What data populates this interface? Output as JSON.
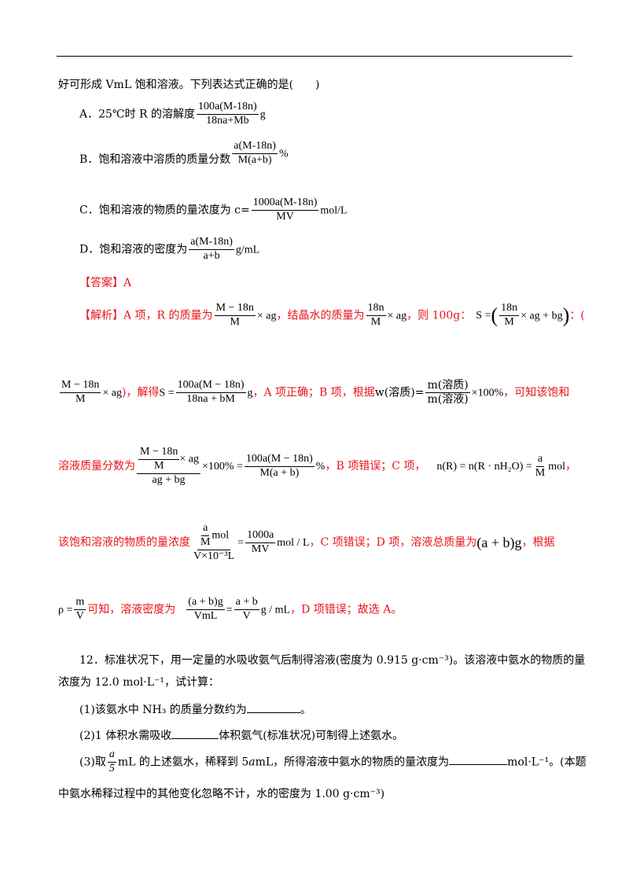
{
  "intro": "好可形成 VmL 饱和溶液。下列表达式正确的是(　　)",
  "options": {
    "a_text": "A．25℃时 R 的溶解度",
    "a_num": "100a(M-18n)",
    "a_den": "18na+Mb",
    "a_unit": "g",
    "b_text": "B．饱和溶液中溶质的质量分数",
    "b_num": "a(M-18n)",
    "b_den": "M(a+b)",
    "b_unit": "%",
    "c_text": "C．饱和溶液的物质的量浓度为 c=",
    "c_num": "1000a(M-18n)",
    "c_den": "MV",
    "c_unit": "mol/L",
    "d_text": "D．饱和溶液的密度为",
    "d_num": "a(M-18n)",
    "d_den": "a+b",
    "d_unit": "g/mL"
  },
  "answer": "【答案】A",
  "analysis": {
    "l1_a": "【解析】A 项，R 的质量为",
    "l1_f1_num": "M − 18n",
    "l1_f1_den": "M",
    "l1_f1_tail": "× ag",
    "l1_b": "，结晶水的质量为",
    "l1_f2_num": "18n",
    "l1_f2_den": "M",
    "l1_f2_tail": "× ag",
    "l1_c": "，则 100g：",
    "l1_s": "S =",
    "l1_f3_num": "18n",
    "l1_f3_den": "M",
    "l1_f3_tail": "× ag + bg",
    "l1_d": "：(",
    "l2_f1_num": "M − 18n",
    "l2_f1_den": "M",
    "l2_f1_tail": "× ag",
    "l2_a": ")，解得",
    "l2_s": "S =",
    "l2_f2_num": "100a(M − 18n)",
    "l2_f2_den": "18na + bM",
    "l2_unit": "g",
    "l2_b": "，A 项正确；B 项，根据",
    "l2_w": "w(溶质",
    "l2_paren": ")=",
    "l2_f3_num": "m(溶质)",
    "l2_f3_den": "m(溶液)",
    "l2_f3_tail": "×100%",
    "l2_c": "，可知该饱和",
    "l3_a": "溶液质量分数为",
    "l3_f1_innum": "M − 18n",
    "l3_f1_inden": "M",
    "l3_f1_intail": "× ag",
    "l3_f1_den": "ag + bg",
    "l3_mid": "×100% =",
    "l3_f2_num": "100a(M − 18n)",
    "l3_f2_den": "M(a + b)",
    "l3_unit": "%",
    "l3_b": "，B 项错误；C 项，",
    "l3_eq": "n(R) = n(R · nH₂O) =",
    "l3_f3_num": "a",
    "l3_f3_den": "M",
    "l3_tail": "mol",
    "l3_c": "，",
    "l4_a": "该饱和溶液的物质的量浓度",
    "l4_f1_innum": "a",
    "l4_f1_inden": "M",
    "l4_f1_intail": "mol",
    "l4_f1_den": "V×10⁻³L",
    "l4_eq": "=",
    "l4_f2_num": "1000a",
    "l4_f2_den": "MV",
    "l4_unit": "mol / L",
    "l4_b": "，C 项错误；D 项，溶液总质量为",
    "l4_mass": "(a + b)g",
    "l4_c": "，根据",
    "l5_rho": "ρ =",
    "l5_f1_num": "m",
    "l5_f1_den": "V",
    "l5_a": "可知，溶液密度为",
    "l5_f2_num": "(a + b)g",
    "l5_f2_den": "VmL",
    "l5_eq": "=",
    "l5_f3_num": "a + b",
    "l5_f3_den": "V",
    "l5_unit": "g / mL",
    "l5_b": "，D 项错误；故选 A。"
  },
  "q12": {
    "l1": "12．标准状况下，用一定量的水吸收氨气后制得溶液(密度为 0.915 g·cm⁻³)。该溶液中氨水的物质的量",
    "l2": "浓度为 12.0 mol·L⁻¹，试计算：",
    "p1_a": "(1)该氨水中 NH₃ 的质量分数约为",
    "p1_b": "。",
    "p2_a": "(2)1 体积水需吸收",
    "p2_b": "体积氨气(标准状况)可制得上述氨水。",
    "p3_a": "(3)取",
    "p3_num": "a",
    "p3_den": "5",
    "p3_b": "mL 的上述氨水，稀释到 5",
    "p3_var": "a",
    "p3_c": "mL，所得溶液中氨水的物质的量浓度为",
    "p3_d": "mol·L⁻¹。(本题",
    "p4": "中氨水稀释过程中的其他变化忽略不计，水的密度为 1.00 g·cm⁻³)"
  }
}
